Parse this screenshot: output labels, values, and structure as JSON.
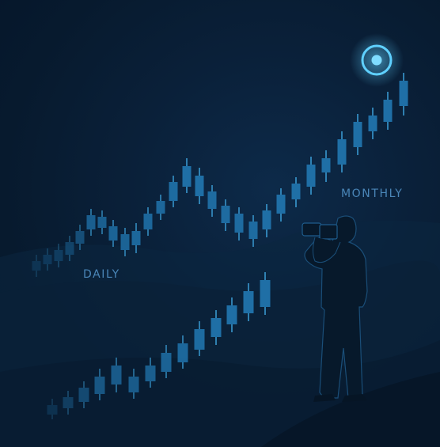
{
  "labels": {
    "monthly": "MONTHLY",
    "daily": "DAILY"
  },
  "colors": {
    "background": "#071a2e",
    "candle_bright": "#2aa3e6",
    "candle_dim": "#1d5c8a",
    "wick": "#49b8ee",
    "target_ring": "#5fd0ff",
    "silhouette": "#081a2c",
    "hills": "#0c2a45"
  },
  "icons": {
    "target": "target-circle-icon",
    "photographer": "photographer-silhouette"
  }
}
